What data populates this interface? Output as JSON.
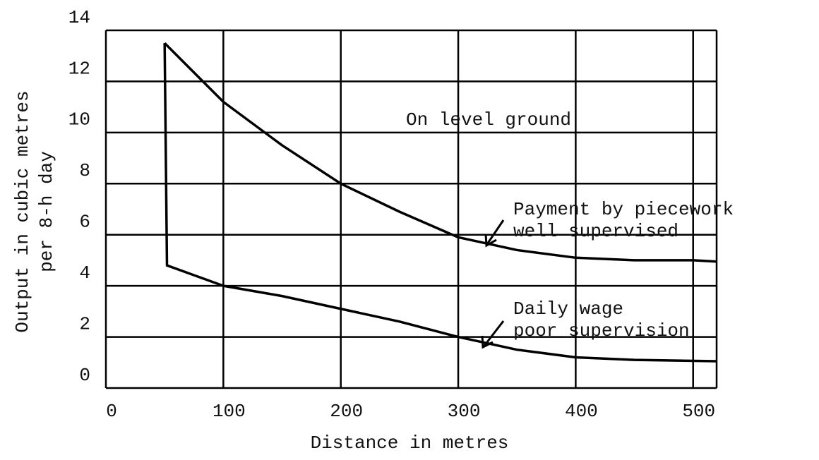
{
  "chart_data": {
    "type": "line",
    "x_label": "Distance in metres",
    "y_label": [
      "Output in cubic metres",
      "per 8-h day"
    ],
    "annotations": [
      "On level ground",
      "Payment by piecework",
      "well supervised",
      "Daily wage",
      "poor supervision"
    ],
    "xlim": [
      0,
      520
    ],
    "xticks": [
      0,
      100,
      200,
      300,
      400,
      500
    ],
    "ylim": [
      0,
      14
    ],
    "yticks": [
      0,
      2,
      4,
      6,
      8,
      10,
      12,
      14
    ],
    "grid": true,
    "series": [
      {
        "name": "Payment by piecework well supervised",
        "color": "#000000",
        "x": [
          50,
          100,
          150,
          200,
          250,
          300,
          350,
          400,
          450,
          500,
          520
        ],
        "values": [
          13.5,
          11.2,
          9.5,
          8.0,
          6.9,
          5.9,
          5.4,
          5.1,
          5.0,
          5.0,
          4.95
        ]
      },
      {
        "name": "Daily wage poor supervision",
        "color": "#000000",
        "x": [
          50,
          52,
          100,
          150,
          200,
          250,
          300,
          350,
          400,
          450,
          520
        ],
        "values": [
          13.5,
          4.8,
          4.0,
          3.6,
          3.1,
          2.6,
          2.0,
          1.5,
          1.2,
          1.1,
          1.05
        ]
      }
    ]
  }
}
